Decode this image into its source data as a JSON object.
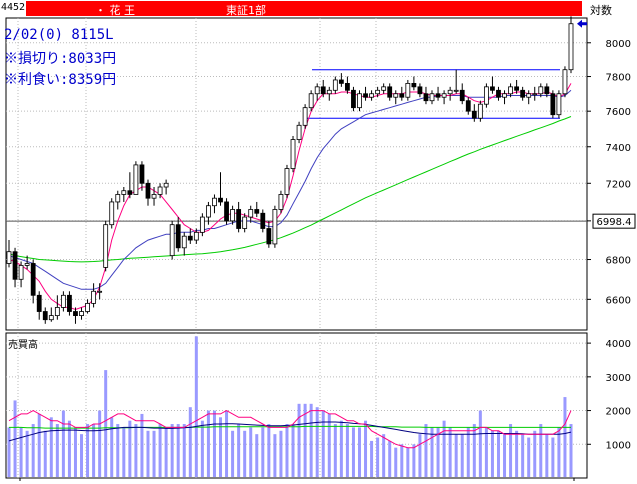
{
  "header": {
    "code": "4452",
    "name": "・ 花 王",
    "market": "東証1部",
    "scale_label": "対数"
  },
  "info": {
    "line1": "2/02(0) 8115L",
    "line2": "※損切り:8033円",
    "line3": "※利食い:8359円"
  },
  "volume_panel_label": "売買高",
  "current_price_label": "6998.4",
  "colors": {
    "up_candle": "#ffffff",
    "down_candle": "#000000",
    "ma_short": "#ff0080",
    "ma_mid": "#4040c0",
    "ma_long": "#00cc00",
    "volume_bar": "#9999ff",
    "support_resistance": "#0000ff",
    "title_bar": "#ff0000"
  },
  "chart_data": [
    {
      "type": "candlestick",
      "title": "",
      "yscale": "log",
      "ylim": [
        6450,
        8150
      ],
      "yticks": [
        6600,
        6800,
        7000,
        7200,
        7400,
        7600,
        7800,
        8000
      ],
      "candles": [
        [
          6780,
          6900,
          6760,
          6840
        ],
        [
          6840,
          6860,
          6660,
          6700
        ],
        [
          6700,
          6790,
          6660,
          6770
        ],
        [
          6770,
          6820,
          6750,
          6780
        ],
        [
          6780,
          6800,
          6580,
          6620
        ],
        [
          6620,
          6640,
          6500,
          6540
        ],
        [
          6540,
          6560,
          6480,
          6500
        ],
        [
          6500,
          6560,
          6490,
          6520
        ],
        [
          6520,
          6620,
          6500,
          6560
        ],
        [
          6560,
          6640,
          6540,
          6620
        ],
        [
          6620,
          6640,
          6520,
          6540
        ],
        [
          6540,
          6560,
          6480,
          6520
        ],
        [
          6520,
          6560,
          6500,
          6540
        ],
        [
          6540,
          6600,
          6530,
          6580
        ],
        [
          6580,
          6680,
          6560,
          6640
        ],
        [
          6640,
          6680,
          6600,
          6640
        ],
        [
          6760,
          7000,
          6740,
          6980
        ],
        [
          6980,
          7120,
          6960,
          7100
        ],
        [
          7100,
          7160,
          7060,
          7140
        ],
        [
          7140,
          7180,
          7100,
          7160
        ],
        [
          7160,
          7260,
          7120,
          7140
        ],
        [
          7140,
          7320,
          7140,
          7300
        ],
        [
          7300,
          7320,
          7160,
          7200
        ],
        [
          7200,
          7220,
          7080,
          7120
        ],
        [
          7120,
          7180,
          7080,
          7140
        ],
        [
          7140,
          7200,
          7120,
          7180
        ],
        [
          7180,
          7220,
          7140,
          7200
        ],
        [
          6820,
          7000,
          6800,
          6980
        ],
        [
          6980,
          7020,
          6840,
          6860
        ],
        [
          6860,
          6940,
          6820,
          6920
        ],
        [
          6920,
          6960,
          6880,
          6900
        ],
        [
          6900,
          6960,
          6880,
          6940
        ],
        [
          6940,
          7040,
          6920,
          7020
        ],
        [
          7020,
          7100,
          6980,
          7080
        ],
        [
          7080,
          7140,
          7040,
          7120
        ],
        [
          7120,
          7260,
          7080,
          7100
        ],
        [
          7100,
          7120,
          6980,
          7000
        ],
        [
          7000,
          7080,
          6980,
          7060
        ],
        [
          7060,
          7100,
          6940,
          6960
        ],
        [
          6960,
          7040,
          6940,
          7020
        ],
        [
          7020,
          7080,
          6990,
          7060
        ],
        [
          7060,
          7100,
          7020,
          7040
        ],
        [
          7040,
          7060,
          6940,
          6960
        ],
        [
          6960,
          7000,
          6860,
          6880
        ],
        [
          6880,
          7080,
          6860,
          7060
        ],
        [
          7060,
          7160,
          7040,
          7140
        ],
        [
          7140,
          7300,
          7120,
          7280
        ],
        [
          7280,
          7460,
          7260,
          7440
        ],
        [
          7440,
          7540,
          7420,
          7520
        ],
        [
          7520,
          7640,
          7500,
          7620
        ],
        [
          7620,
          7720,
          7600,
          7700
        ],
        [
          7700,
          7760,
          7660,
          7740
        ],
        [
          7740,
          7780,
          7680,
          7700
        ],
        [
          7700,
          7740,
          7660,
          7720
        ],
        [
          7720,
          7800,
          7700,
          7780
        ],
        [
          7780,
          7820,
          7740,
          7760
        ],
        [
          7760,
          7800,
          7700,
          7720
        ],
        [
          7720,
          7740,
          7600,
          7620
        ],
        [
          7620,
          7720,
          7600,
          7700
        ],
        [
          7700,
          7740,
          7660,
          7680
        ],
        [
          7680,
          7720,
          7660,
          7700
        ],
        [
          7700,
          7740,
          7680,
          7720
        ],
        [
          7720,
          7760,
          7700,
          7740
        ],
        [
          7740,
          7760,
          7660,
          7680
        ],
        [
          7680,
          7720,
          7640,
          7700
        ],
        [
          7700,
          7740,
          7660,
          7680
        ],
        [
          7680,
          7780,
          7660,
          7760
        ],
        [
          7760,
          7800,
          7720,
          7740
        ],
        [
          7740,
          7760,
          7680,
          7700
        ],
        [
          7700,
          7740,
          7640,
          7660
        ],
        [
          7660,
          7720,
          7640,
          7700
        ],
        [
          7700,
          7740,
          7660,
          7680
        ],
        [
          7680,
          7720,
          7640,
          7700
        ],
        [
          7700,
          7740,
          7660,
          7720
        ],
        [
          7720,
          7840,
          7700,
          7720
        ],
        [
          7720,
          7760,
          7640,
          7660
        ],
        [
          7660,
          7680,
          7580,
          7600
        ],
        [
          7600,
          7640,
          7540,
          7560
        ],
        [
          7560,
          7660,
          7540,
          7640
        ],
        [
          7640,
          7760,
          7620,
          7740
        ],
        [
          7740,
          7800,
          7700,
          7720
        ],
        [
          7720,
          7740,
          7660,
          7680
        ],
        [
          7680,
          7720,
          7640,
          7700
        ],
        [
          7700,
          7760,
          7680,
          7740
        ],
        [
          7740,
          7780,
          7700,
          7720
        ],
        [
          7720,
          7740,
          7660,
          7680
        ],
        [
          7680,
          7720,
          7640,
          7700
        ],
        [
          7700,
          7740,
          7660,
          7700
        ],
        [
          7700,
          7760,
          7680,
          7740
        ],
        [
          7740,
          7760,
          7680,
          7700
        ],
        [
          7700,
          7720,
          7560,
          7580
        ],
        [
          7580,
          7720,
          7560,
          7700
        ],
        [
          7700,
          7860,
          7680,
          7840
        ],
        [
          7840,
          8160,
          7820,
          8115
        ]
      ],
      "ma_short": [
        6800,
        6790,
        6770,
        6750,
        6720,
        6690,
        6640,
        6600,
        6580,
        6560,
        6560,
        6550,
        6560,
        6570,
        6600,
        6660,
        6760,
        6900,
        7000,
        7080,
        7140,
        7160,
        7180,
        7180,
        7160,
        7140,
        7100,
        7060,
        7020,
        6980,
        6960,
        6940,
        6940,
        6950,
        6980,
        7010,
        7030,
        7040,
        7040,
        7030,
        7020,
        7010,
        7000,
        6990,
        7000,
        7040,
        7120,
        7240,
        7380,
        7500,
        7600,
        7660,
        7700,
        7700,
        7700,
        7710,
        7710,
        7700,
        7690,
        7680,
        7680,
        7690,
        7700,
        7700,
        7700,
        7700,
        7710,
        7710,
        7710,
        7700,
        7690,
        7690,
        7690,
        7690,
        7700,
        7700,
        7680,
        7660,
        7650,
        7660,
        7680,
        7700,
        7700,
        7700,
        7710,
        7710,
        7700,
        7700,
        7700,
        7710,
        7700,
        7680,
        7700,
        7760
      ],
      "ma_mid": [
        6820,
        6810,
        6800,
        6790,
        6780,
        6760,
        6740,
        6720,
        6700,
        6680,
        6670,
        6660,
        6650,
        6650,
        6650,
        6660,
        6680,
        6720,
        6760,
        6800,
        6830,
        6860,
        6880,
        6900,
        6910,
        6920,
        6930,
        6930,
        6940,
        6940,
        6940,
        6950,
        6950,
        6960,
        6960,
        6970,
        6980,
        6990,
        7000,
        7000,
        7000,
        6990,
        6980,
        6970,
        6970,
        6990,
        7030,
        7090,
        7150,
        7210,
        7280,
        7340,
        7390,
        7430,
        7470,
        7500,
        7520,
        7540,
        7560,
        7580,
        7590,
        7600,
        7610,
        7620,
        7630,
        7640,
        7650,
        7660,
        7670,
        7680,
        7680,
        7690,
        7690,
        7690,
        7690,
        7690,
        7680,
        7680,
        7680,
        7680,
        7680,
        7680,
        7690,
        7690,
        7690,
        7690,
        7690,
        7690,
        7690,
        7690,
        7690,
        7680,
        7690,
        7720
      ],
      "ma_long": [
        6830,
        6820,
        6815,
        6810,
        6805,
        6800,
        6798,
        6796,
        6794,
        6792,
        6790,
        6789,
        6788,
        6789,
        6790,
        6792,
        6795,
        6798,
        6800,
        6803,
        6806,
        6808,
        6810,
        6812,
        6814,
        6816,
        6818,
        6820,
        6822,
        6824,
        6826,
        6828,
        6830,
        6833,
        6836,
        6840,
        6845,
        6850,
        6856,
        6862,
        6870,
        6878,
        6886,
        6894,
        6902,
        6912,
        6924,
        6936,
        6950,
        6964,
        6978,
        6994,
        7010,
        7026,
        7042,
        7058,
        7074,
        7090,
        7106,
        7122,
        7136,
        7150,
        7164,
        7178,
        7192,
        7206,
        7220,
        7234,
        7248,
        7262,
        7276,
        7290,
        7304,
        7318,
        7332,
        7346,
        7360,
        7372,
        7386,
        7398,
        7410,
        7422,
        7434,
        7446,
        7458,
        7470,
        7482,
        7494,
        7506,
        7518,
        7530,
        7544,
        7556,
        7570
      ],
      "resistance_line": 7840,
      "support_line": 7560,
      "current_price_line": 6998.4
    },
    {
      "type": "bar",
      "title": "売買高",
      "ylim": [
        0,
        4300
      ],
      "yticks": [
        1000,
        2000,
        3000,
        4000
      ],
      "values": [
        1500,
        2300,
        1500,
        1400,
        1600,
        1900,
        1400,
        1800,
        1600,
        2000,
        1700,
        1500,
        1300,
        1600,
        1600,
        2000,
        3200,
        1800,
        1600,
        1500,
        1700,
        1600,
        1900,
        1400,
        1400,
        1600,
        1500,
        1600,
        1600,
        1600,
        2100,
        4200,
        1700,
        2000,
        2000,
        1800,
        2000,
        1400,
        1600,
        1400,
        1500,
        1300,
        1500,
        1600,
        1300,
        1400,
        1600,
        1600,
        2200,
        2200,
        2200,
        2100,
        2000,
        1900,
        1600,
        1700,
        1600,
        1500,
        1500,
        1700,
        1100,
        1200,
        1300,
        1100,
        900,
        1000,
        900,
        1000,
        1300,
        1600,
        1500,
        1500,
        1700,
        1500,
        1300,
        1300,
        1500,
        1600,
        2000,
        1500,
        1400,
        1400,
        1300,
        1600,
        1400,
        1300,
        1200,
        1400,
        1600,
        1300,
        1200,
        1500,
        2400,
        1600
      ],
      "ma_short": [
        1700,
        1800,
        1900,
        1900,
        2000,
        1900,
        1800,
        1700,
        1700,
        1600,
        1600,
        1500,
        1500,
        1500,
        1600,
        1600,
        1700,
        1800,
        1900,
        1900,
        1800,
        1700,
        1700,
        1700,
        1700,
        1600,
        1500,
        1500,
        1500,
        1500,
        1600,
        1700,
        1800,
        1900,
        1900,
        1900,
        2000,
        1900,
        1800,
        1800,
        1800,
        1700,
        1600,
        1500,
        1500,
        1500,
        1500,
        1600,
        1800,
        1900,
        2000,
        2000,
        2000,
        1900,
        1900,
        1800,
        1700,
        1700,
        1600,
        1600,
        1400,
        1300,
        1200,
        1100,
        1000,
        950,
        900,
        900,
        1000,
        1100,
        1200,
        1300,
        1400,
        1400,
        1400,
        1400,
        1400,
        1400,
        1500,
        1500,
        1400,
        1400,
        1300,
        1300,
        1300,
        1300,
        1300,
        1300,
        1300,
        1300,
        1300,
        1400,
        1600,
        2000
      ],
      "ma_mid": [
        1100,
        1150,
        1200,
        1250,
        1300,
        1350,
        1380,
        1400,
        1410,
        1420,
        1420,
        1420,
        1410,
        1400,
        1400,
        1410,
        1430,
        1460,
        1480,
        1500,
        1500,
        1500,
        1500,
        1490,
        1480,
        1480,
        1470,
        1470,
        1480,
        1490,
        1500,
        1530,
        1560,
        1580,
        1600,
        1600,
        1610,
        1610,
        1600,
        1590,
        1580,
        1570,
        1560,
        1550,
        1550,
        1550,
        1560,
        1570,
        1590,
        1610,
        1630,
        1650,
        1660,
        1660,
        1660,
        1650,
        1640,
        1620,
        1610,
        1590,
        1560,
        1530,
        1500,
        1470,
        1440,
        1410,
        1380,
        1350,
        1330,
        1310,
        1300,
        1300,
        1300,
        1300,
        1300,
        1300,
        1300,
        1300,
        1310,
        1320,
        1320,
        1320,
        1320,
        1320,
        1320,
        1310,
        1300,
        1300,
        1300,
        1300,
        1300,
        1300,
        1320,
        1360
      ],
      "ma_long": [
        1500,
        1500,
        1500,
        1490,
        1490,
        1490,
        1480,
        1480,
        1480,
        1480,
        1480,
        1480,
        1480,
        1480,
        1480,
        1480,
        1490,
        1490,
        1490,
        1490,
        1490,
        1500,
        1500,
        1500,
        1500,
        1500,
        1500,
        1500,
        1500,
        1500,
        1500,
        1510,
        1510,
        1510,
        1520,
        1520,
        1520,
        1520,
        1520,
        1520,
        1520,
        1520,
        1520,
        1520,
        1520,
        1520,
        1520,
        1520,
        1520,
        1530,
        1530,
        1530,
        1530,
        1530,
        1530,
        1530,
        1530,
        1530,
        1530,
        1530,
        1530,
        1520,
        1520,
        1520,
        1520,
        1510,
        1510,
        1510,
        1510,
        1500,
        1500,
        1500,
        1500,
        1500,
        1500,
        1500,
        1500,
        1500,
        1500,
        1500,
        1500,
        1500,
        1500,
        1500,
        1500,
        1500,
        1500,
        1500,
        1500,
        1500,
        1500,
        1500,
        1500,
        1500
      ]
    }
  ]
}
